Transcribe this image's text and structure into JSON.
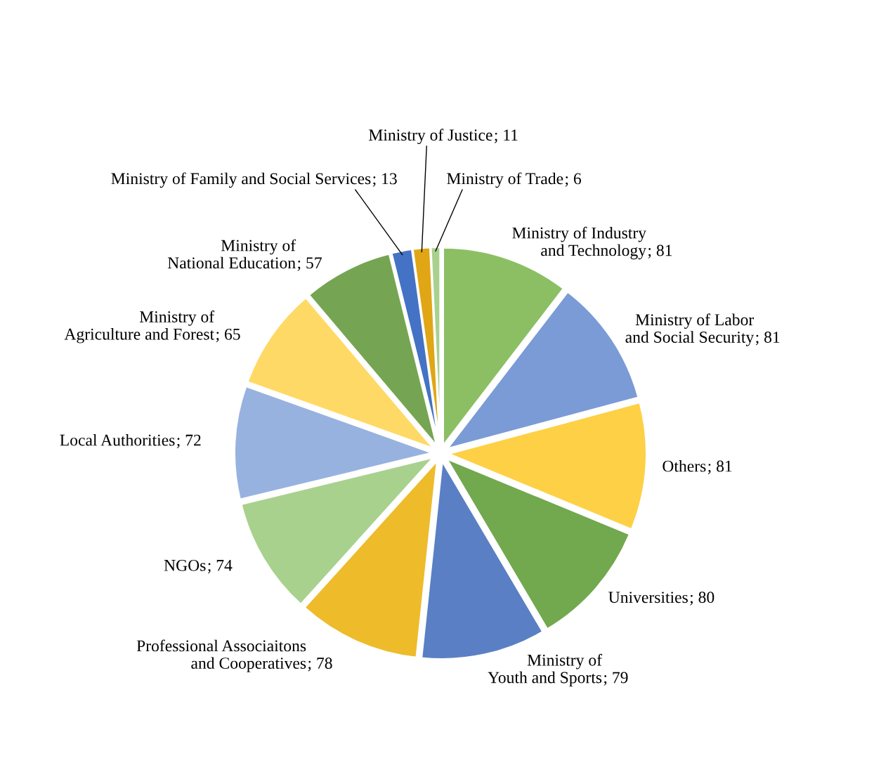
{
  "chart_data": {
    "type": "pie",
    "categories": [
      "Ministry of Industry and Technology",
      "Ministry of Labor and Social Security",
      "Others",
      "Universities",
      "Ministry of Youth and Sports",
      "Professional Associaitons and Cooperatives",
      "NGOs",
      "Local Authorities",
      "Ministry of Agriculture and Forest",
      "Ministry of National Education",
      "Ministry of Family and Social Services",
      "Ministry of Justice",
      "Ministry of Trade"
    ],
    "values": [
      81,
      81,
      81,
      80,
      79,
      78,
      74,
      72,
      65,
      57,
      13,
      11,
      6
    ],
    "colors": [
      "#8cbf64",
      "#7a9bd6",
      "#fdd046",
      "#72a84e",
      "#5a7fc4",
      "#eebb2a",
      "#a9d18e",
      "#98b2e0",
      "#ffd966",
      "#75a552",
      "#4472c4",
      "#e0a615",
      "#a9d18e"
    ],
    "value_labels": [
      "; 81",
      "; 81",
      "; 81",
      "; 80",
      "; 79",
      "; 78",
      "; 74",
      "; 72",
      "; 65",
      "; 57",
      "; 13",
      "; 11",
      "; 6"
    ],
    "legend": false
  }
}
